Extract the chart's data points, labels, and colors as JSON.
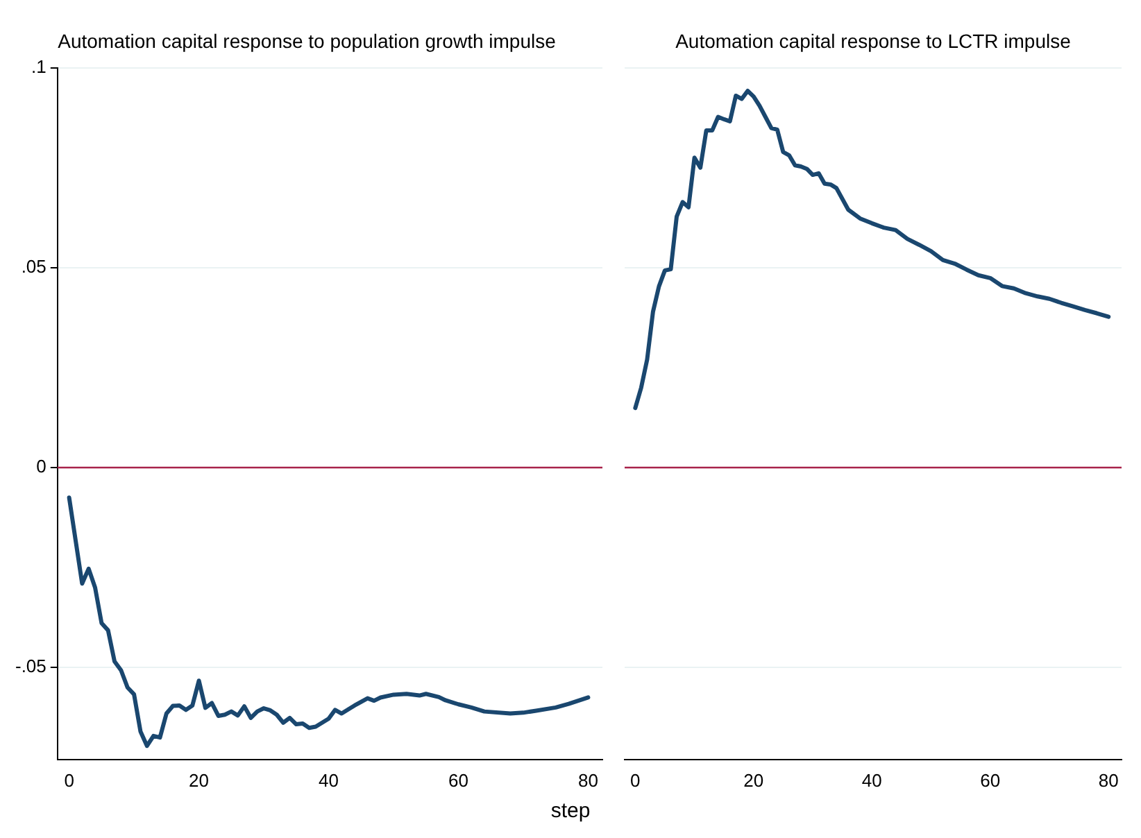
{
  "chart_data": [
    {
      "type": "line",
      "title": "Automation capital response to population growth impulse",
      "xlabel": "step",
      "grid": "y",
      "legend": false,
      "marker": "none",
      "line_style": "solid",
      "xlim": [
        -1.8,
        82.2
      ],
      "xticks": [
        0,
        20,
        40,
        60,
        80
      ],
      "ylim": [
        -0.073,
        0.1
      ],
      "yticks": [
        {
          "value": 0.1,
          "label": ".1"
        },
        {
          "value": 0.05,
          "label": ".05"
        },
        0,
        {
          "value": -0.05,
          "label": "-.05"
        }
      ],
      "ref_lines": [
        {
          "axis": "y",
          "value": 0,
          "color": "#a8234a"
        }
      ],
      "series": [
        {
          "color": "#1a476f",
          "x": [
            0,
            2,
            3,
            4,
            5,
            6,
            7,
            8,
            9,
            10,
            11,
            12,
            13,
            14,
            15,
            16,
            17,
            18,
            19,
            20,
            21,
            22,
            23,
            24,
            25,
            26,
            27,
            28,
            29,
            30,
            31,
            32,
            33,
            34,
            35,
            36,
            37,
            38,
            40,
            41,
            42,
            44,
            46,
            47,
            48,
            50,
            52,
            54,
            55,
            57,
            58,
            60,
            62,
            64,
            68,
            70,
            72,
            75,
            77,
            80
          ],
          "values": [
            -0.0075,
            -0.029,
            -0.0253,
            -0.03,
            -0.0389,
            -0.0407,
            -0.0485,
            -0.0507,
            -0.055,
            -0.0567,
            -0.066,
            -0.0696,
            -0.0671,
            -0.0675,
            -0.0615,
            -0.0596,
            -0.0595,
            -0.0606,
            -0.0595,
            -0.0533,
            -0.0601,
            -0.0589,
            -0.0621,
            -0.0618,
            -0.061,
            -0.062,
            -0.0597,
            -0.0626,
            -0.061,
            -0.0602,
            -0.0607,
            -0.0618,
            -0.0638,
            -0.0626,
            -0.0642,
            -0.064,
            -0.0651,
            -0.0648,
            -0.0628,
            -0.0606,
            -0.0615,
            -0.0595,
            -0.0577,
            -0.0583,
            -0.0575,
            -0.0568,
            -0.0566,
            -0.057,
            -0.0566,
            -0.0574,
            -0.0582,
            -0.0592,
            -0.06,
            -0.061,
            -0.0615,
            -0.0613,
            -0.0608,
            -0.06,
            -0.0591,
            -0.0575
          ]
        }
      ]
    },
    {
      "type": "line",
      "title": "Automation capital response to LCTR impulse",
      "grid": "y",
      "legend": false,
      "marker": "none",
      "line_style": "solid",
      "tick_labels": "x",
      "xlim": [
        -1.8,
        82.2
      ],
      "xticks": [
        0,
        20,
        40,
        60,
        80
      ],
      "ylim": [
        -0.073,
        0.1
      ],
      "yticks": [
        {
          "value": 0.1,
          "label": null
        },
        {
          "value": 0.05,
          "label": null
        },
        {
          "value": 0,
          "label": null
        },
        {
          "value": -0.05,
          "label": null
        }
      ],
      "ref_lines": [
        {
          "axis": "y",
          "value": 0,
          "color": "#a8234a"
        }
      ],
      "series": [
        {
          "color": "#1a476f",
          "x": [
            0,
            1,
            2,
            3,
            4,
            5,
            6,
            7,
            8,
            9,
            10,
            11,
            12,
            13,
            14,
            15,
            16,
            17,
            18,
            19,
            20,
            21,
            22,
            23,
            24,
            25,
            26,
            27,
            28,
            29,
            30,
            31,
            32,
            33,
            34,
            36,
            38,
            40,
            42,
            44,
            46,
            48,
            50,
            52,
            54,
            56,
            58,
            60,
            62,
            64,
            66,
            68,
            70,
            72,
            74,
            76,
            78,
            80
          ],
          "values": [
            0.0149,
            0.02,
            0.027,
            0.039,
            0.0453,
            0.0493,
            0.0496,
            0.0628,
            0.0664,
            0.0651,
            0.0775,
            0.075,
            0.0843,
            0.0843,
            0.0877,
            0.0871,
            0.0866,
            0.093,
            0.0922,
            0.0942,
            0.0928,
            0.0905,
            0.0877,
            0.0849,
            0.0845,
            0.0789,
            0.0781,
            0.0756,
            0.0753,
            0.0747,
            0.0732,
            0.0736,
            0.071,
            0.0708,
            0.0699,
            0.0645,
            0.0623,
            0.0611,
            0.06,
            0.0594,
            0.0572,
            0.0557,
            0.0541,
            0.0519,
            0.051,
            0.0495,
            0.0481,
            0.0474,
            0.0454,
            0.0448,
            0.0436,
            0.0428,
            0.0422,
            0.0412,
            0.0403,
            0.0394,
            0.0386,
            0.0377
          ]
        }
      ]
    }
  ]
}
